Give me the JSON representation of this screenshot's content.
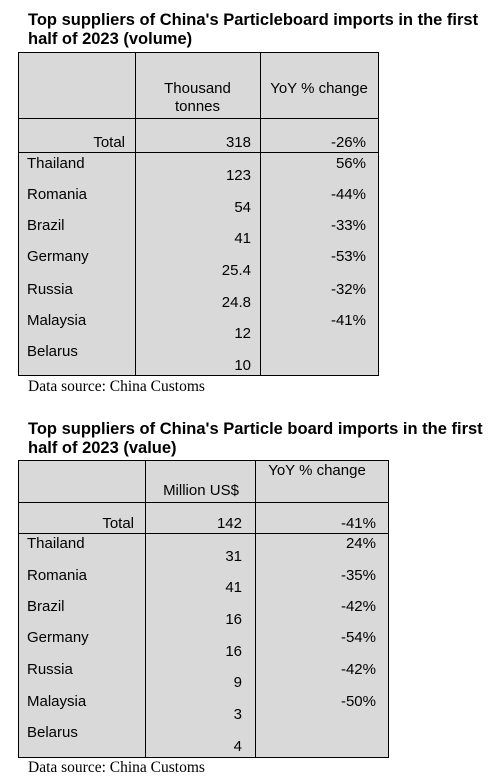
{
  "tables": [
    {
      "title": "Top suppliers of China's Particleboard imports in the first half of 2023 (volume)",
      "col_headers": [
        "Thousand tonnes",
        "YoY % change"
      ],
      "total": {
        "label": "Total",
        "value": "318",
        "yoy": "-26%"
      },
      "rows": [
        {
          "country": "Thailand",
          "value": "123",
          "yoy": "56%"
        },
        {
          "country": "Romania",
          "value": "54",
          "yoy": "-44%"
        },
        {
          "country": "Brazil",
          "value": "41",
          "yoy": "-33%"
        },
        {
          "country": "Germany",
          "value": "25.4",
          "yoy": "-53%"
        },
        {
          "country": "Russia",
          "value": "24.8",
          "yoy": "-32%"
        },
        {
          "country": "Malaysia",
          "value": "12",
          "yoy": "-41%"
        },
        {
          "country": "Belarus",
          "value": "10",
          "yoy": ""
        }
      ],
      "source": "Data source: China Customs"
    },
    {
      "title": "Top suppliers of China's Particle board imports in the first half of 2023 (value)",
      "col_headers": [
        "Million US$",
        "YoY % change"
      ],
      "total": {
        "label": "Total",
        "value": "142",
        "yoy": "-41%"
      },
      "rows": [
        {
          "country": "Thailand",
          "value": "31",
          "yoy": "24%"
        },
        {
          "country": "Romania",
          "value": "41",
          "yoy": "-35%"
        },
        {
          "country": "Brazil",
          "value": "16",
          "yoy": "-42%"
        },
        {
          "country": "Germany",
          "value": "16",
          "yoy": "-54%"
        },
        {
          "country": "Russia",
          "value": "9",
          "yoy": "-42%"
        },
        {
          "country": "Malaysia",
          "value": "3",
          "yoy": "-50%"
        },
        {
          "country": "Belarus",
          "value": "4",
          "yoy": ""
        }
      ],
      "source": "Data source: China Customs"
    }
  ]
}
